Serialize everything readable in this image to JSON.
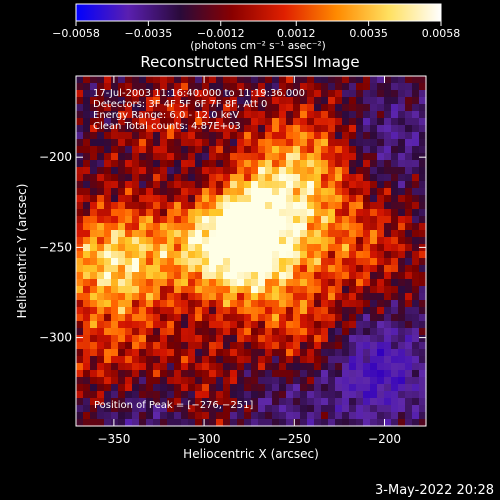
{
  "chart_data": {
    "type": "heatmap",
    "title": "Reconstructed RHESSI Image",
    "colorbar": {
      "ticks": [
        "−0.0058",
        "−0.0035",
        "−0.0012",
        "0.0012",
        "0.0035",
        "0.0058"
      ],
      "tick_values": [
        -0.0058,
        -0.0035,
        -0.0012,
        0.0012,
        0.0035,
        0.0058
      ],
      "range": [
        -0.0058,
        0.0058
      ],
      "unit_label": "(photons cm⁻² s⁻¹ asec⁻²)",
      "colormap": [
        "#0000ff",
        "#5a1fb0",
        "#2a0a3a",
        "#8a0000",
        "#e02000",
        "#ff8a00",
        "#ffe060",
        "#ffffff"
      ]
    },
    "xlabel": "Heliocentric X (arcsec)",
    "ylabel": "Heliocentric Y (arcsec)",
    "x_ticks": [
      -350,
      -300,
      -250,
      -200
    ],
    "y_ticks": [
      -200,
      -250,
      -300
    ],
    "xlim": [
      -371,
      -177
    ],
    "ylim": [
      -349,
      -155
    ],
    "annotations": [
      "17-Jul-2003 11:16:40.000 to 11:19:36.000",
      "Detectors: 3F 4F 5F 6F 7F 8F, Att 0",
      "Energy Range: 6.0 - 12.0 keV",
      "Clean     Total counts: 4.87E+03"
    ],
    "peak_label": "Position of Peak = [−276,−251]",
    "peak": [
      -276,
      -251
    ],
    "bright_sources": [
      {
        "x": -276,
        "y": -251,
        "level": 1.0
      },
      {
        "x": -350,
        "y": -258,
        "level": 0.85
      },
      {
        "x": -262,
        "y": -224,
        "level": 0.55
      },
      {
        "x": -240,
        "y": -198,
        "level": 0.5
      },
      {
        "x": -315,
        "y": -190,
        "level": 0.45
      },
      {
        "x": -246,
        "y": -302,
        "level": 0.45
      },
      {
        "x": -300,
        "y": -240,
        "level": 0.5
      },
      {
        "x": -215,
        "y": -248,
        "level": 0.4
      },
      {
        "x": -350,
        "y": -310,
        "level": 0.35
      },
      {
        "x": -305,
        "y": -330,
        "level": 0.3
      }
    ],
    "dim_regions": [
      {
        "x": -305,
        "y": -210,
        "level": -0.5
      },
      {
        "x": -205,
        "y": -318,
        "level": -0.7
      },
      {
        "x": -330,
        "y": -342,
        "level": -0.4
      },
      {
        "x": -200,
        "y": -190,
        "level": -0.35
      },
      {
        "x": -258,
        "y": -332,
        "level": -0.35
      }
    ]
  },
  "footer": {
    "date": "3-May-2022 20:28"
  }
}
